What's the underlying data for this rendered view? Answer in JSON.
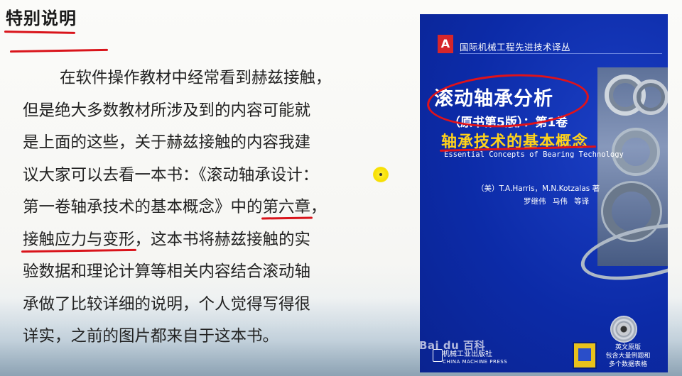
{
  "slide": {
    "title": "特别说明",
    "paragraph_lines": [
      "在软件操作教材中经常看到赫兹接触，",
      "但是绝大多数教材所涉及到的内容可能就",
      "是上面的这些，关于赫兹接触的内容我建",
      "议大家可以去看一本书：《滚动轴承设计：",
      "第一卷轴承技术的基本概念》中的",
      "第六章",
      "，",
      "接触应力与变形",
      "，这本书将赫兹接触的实",
      "验数据和理论计算等相关内容结合滚动轴",
      "承做了比较详细的说明，个人觉得写得很",
      "详实，之前的图片都来自于这本书。"
    ]
  },
  "book": {
    "logo_letter": "A",
    "series": "国际机械工程先进技术译丛",
    "main_title": "滚动轴承分析",
    "sub_title": "（原书第5版）：第1卷",
    "vol_title": "轴承技术的基本概念",
    "en_title": "Essential Concepts of Bearing Technology",
    "authors": "（美）T.A.Harris，M.N.Kotzalas 著",
    "translators": "罗继伟 马伟 等译",
    "cd_line1": "英文原版",
    "cd_line2": "包含大量例题和",
    "cd_line3": "多个数据表格",
    "publisher_cn": "机械工业出版社",
    "publisher_en": "CHINA MACHINE PRESS",
    "watermark": "Bai du 百科"
  },
  "colors": {
    "annotation_red": "#d9141b",
    "book_blue": "#0c2ba8",
    "title_yellow": "#ffd21a",
    "pointer_yellow": "#f7df00"
  }
}
